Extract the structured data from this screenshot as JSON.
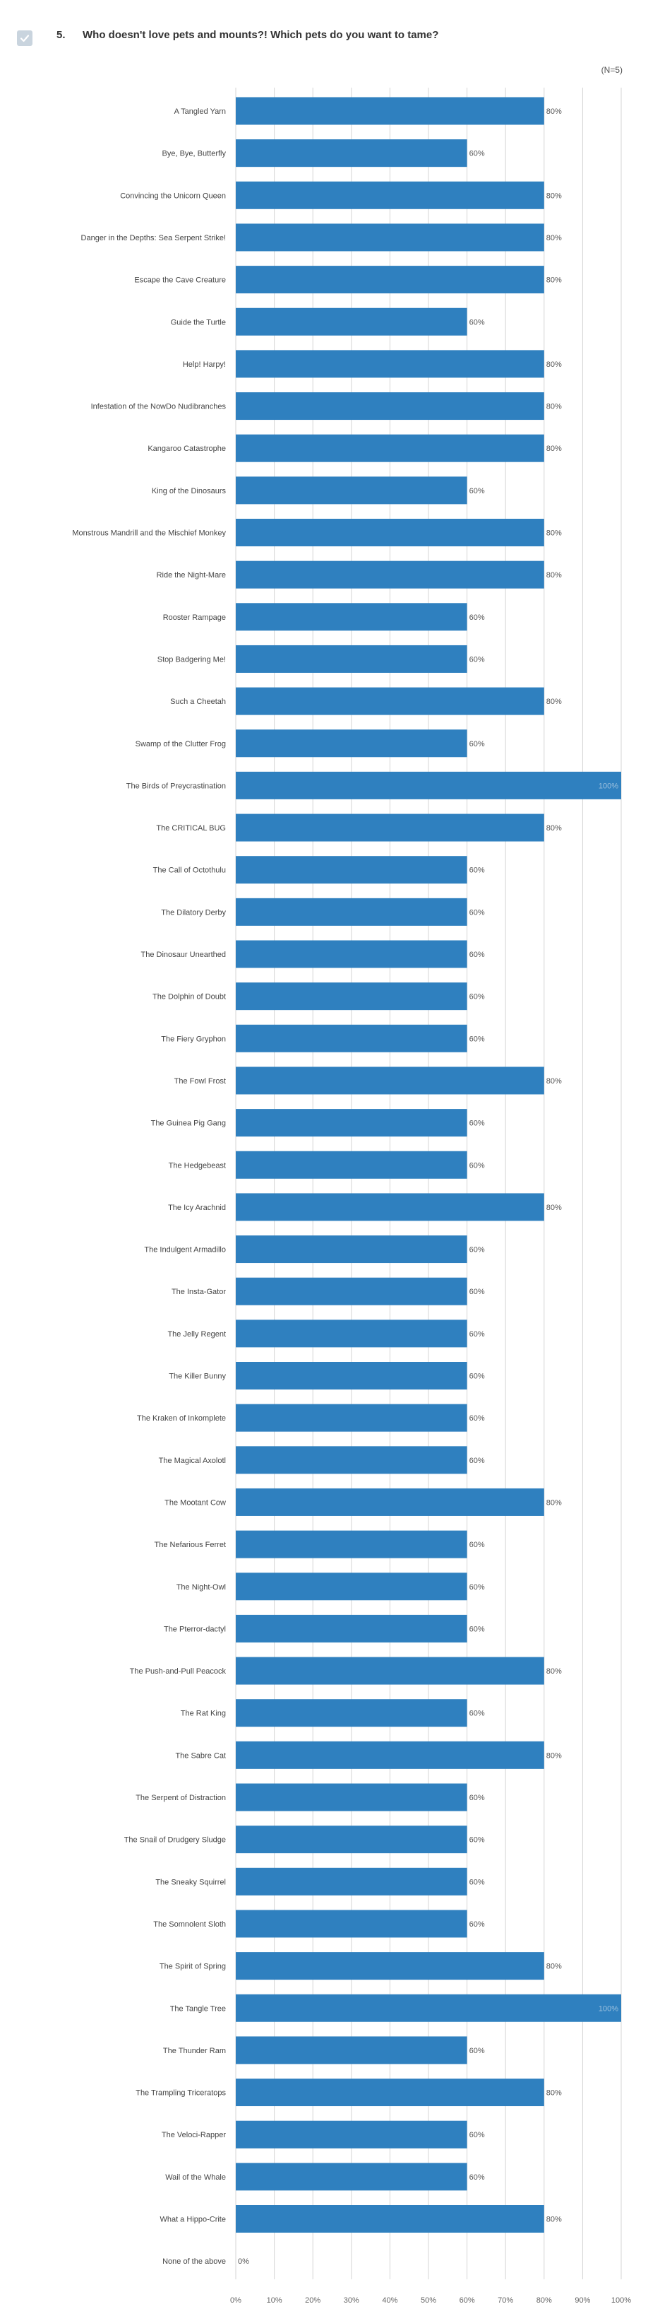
{
  "question": {
    "number": "5.",
    "title": "Who doesn't love pets and mounts?! Which pets do you want to tame?",
    "n_label": "(N=5)"
  },
  "icons": {
    "checkbox": "check-icon"
  },
  "colors": {
    "bar": "#2f80bf",
    "grid": "#d5d5d5",
    "axis_text": "#666666",
    "checkbox_bg": "#c9d4de"
  },
  "chart_data": {
    "type": "bar",
    "orientation": "horizontal",
    "xlim": [
      0,
      100
    ],
    "xticks": [
      "0%",
      "10%",
      "20%",
      "30%",
      "40%",
      "50%",
      "60%",
      "70%",
      "80%",
      "90%",
      "100%"
    ],
    "grid": true,
    "categories": [
      "A Tangled Yarn",
      "Bye, Bye, Butterfly",
      "Convincing the Unicorn Queen",
      "Danger in the Depths: Sea Serpent Strike!",
      "Escape the Cave Creature",
      "Guide the Turtle",
      "Help! Harpy!",
      "Infestation of the NowDo Nudibranches",
      "Kangaroo Catastrophe",
      "King of the Dinosaurs",
      "Monstrous Mandrill and the Mischief Monkey",
      "Ride the Night-Mare",
      "Rooster Rampage",
      "Stop Badgering Me!",
      "Such a Cheetah",
      "Swamp of the Clutter Frog",
      "The Birds of Preycrastination",
      "The CRITICAL BUG",
      "The Call of Octothulu",
      "The Dilatory Derby",
      "The Dinosaur Unearthed",
      "The Dolphin of Doubt",
      "The Fiery Gryphon",
      "The Fowl Frost",
      "The Guinea Pig Gang",
      "The Hedgebeast",
      "The Icy Arachnid",
      "The Indulgent Armadillo",
      "The Insta-Gator",
      "The Jelly Regent",
      "The Killer Bunny",
      "The Kraken of Inkomplete",
      "The Magical Axolotl",
      "The Mootant Cow",
      "The Nefarious Ferret",
      "The Night-Owl",
      "The Pterror-dactyl",
      "The Push-and-Pull Peacock",
      "The Rat King",
      "The Sabre Cat",
      "The Serpent of Distraction",
      "The Snail of Drudgery Sludge",
      "The Sneaky Squirrel",
      "The Somnolent Sloth",
      "The Spirit of Spring",
      "The Tangle Tree",
      "The Thunder Ram",
      "The Trampling Triceratops",
      "The Veloci-Rapper",
      "Wail of the Whale",
      "What a Hippo-Crite",
      "None of the above"
    ],
    "values": [
      80,
      60,
      80,
      80,
      80,
      60,
      80,
      80,
      80,
      60,
      80,
      80,
      60,
      60,
      80,
      60,
      100,
      80,
      60,
      60,
      60,
      60,
      60,
      80,
      60,
      60,
      80,
      60,
      60,
      60,
      60,
      60,
      60,
      80,
      60,
      60,
      60,
      80,
      60,
      80,
      60,
      60,
      60,
      60,
      80,
      100,
      60,
      80,
      60,
      60,
      80,
      0
    ],
    "value_labels": [
      "80%",
      "60%",
      "80%",
      "80%",
      "80%",
      "60%",
      "80%",
      "80%",
      "80%",
      "60%",
      "80%",
      "80%",
      "60%",
      "60%",
      "80%",
      "60%",
      "100%",
      "80%",
      "60%",
      "60%",
      "60%",
      "60%",
      "60%",
      "80%",
      "60%",
      "60%",
      "80%",
      "60%",
      "60%",
      "60%",
      "60%",
      "60%",
      "60%",
      "80%",
      "60%",
      "60%",
      "60%",
      "80%",
      "60%",
      "80%",
      "60%",
      "60%",
      "60%",
      "60%",
      "80%",
      "100%",
      "60%",
      "80%",
      "60%",
      "60%",
      "80%",
      "0%"
    ]
  }
}
